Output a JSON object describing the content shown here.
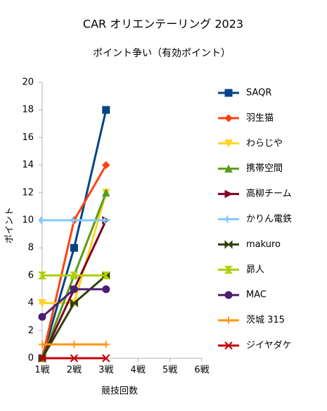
{
  "chart_data": {
    "type": "line",
    "title": "CAR オリエンテーリング 2023",
    "subtitle": "ポイント争い（有効ポイント）",
    "y_label": "ポイント",
    "x_label": "競技回数",
    "categories": [
      "1戦",
      "2戦",
      "3戦",
      "4戦",
      "5戦",
      "6戦"
    ],
    "ylim": [
      0,
      20
    ],
    "yticks": [
      0,
      2,
      4,
      6,
      8,
      10,
      12,
      14,
      16,
      18,
      20
    ],
    "grid": false,
    "legend": "right",
    "series": [
      {
        "name": "SAQR",
        "color": "#004586",
        "marker": "square",
        "values": [
          0,
          8,
          18,
          null,
          null,
          null
        ]
      },
      {
        "name": "羽生猫",
        "color": "#ff420e",
        "marker": "diamond",
        "values": [
          0,
          10,
          14,
          null,
          null,
          null
        ]
      },
      {
        "name": "わらじや",
        "color": "#ffd320",
        "marker": "triangle-down",
        "values": [
          4,
          4,
          12,
          null,
          null,
          null
        ]
      },
      {
        "name": "携帯空間",
        "color": "#579d1c",
        "marker": "triangle-up",
        "values": [
          0,
          6,
          12,
          null,
          null,
          null
        ]
      },
      {
        "name": "高柳チーム",
        "color": "#7e0021",
        "marker": "triangle-right",
        "values": [
          0,
          5,
          10,
          null,
          null,
          null
        ]
      },
      {
        "name": "かりん電鉄",
        "color": "#83caff",
        "marker": "arrow",
        "values": [
          10,
          10,
          10,
          null,
          null,
          null
        ]
      },
      {
        "name": "makuro",
        "color": "#314004",
        "marker": "bowtie",
        "values": [
          0,
          4,
          6,
          null,
          null,
          null
        ]
      },
      {
        "name": "昴人",
        "color": "#aecf00",
        "marker": "hourglass",
        "values": [
          6,
          6,
          6,
          null,
          null,
          null
        ]
      },
      {
        "name": "MAC",
        "color": "#4b1f6f",
        "marker": "circle",
        "values": [
          3,
          5,
          5,
          null,
          null,
          null
        ]
      },
      {
        "name": "茨城 315",
        "color": "#ff950e",
        "marker": "plus",
        "values": [
          1,
          1,
          1,
          null,
          null,
          null
        ]
      },
      {
        "name": "ジイヤダケ",
        "color": "#c5000b",
        "marker": "x",
        "values": [
          0,
          0,
          0,
          null,
          null,
          null
        ]
      }
    ]
  }
}
